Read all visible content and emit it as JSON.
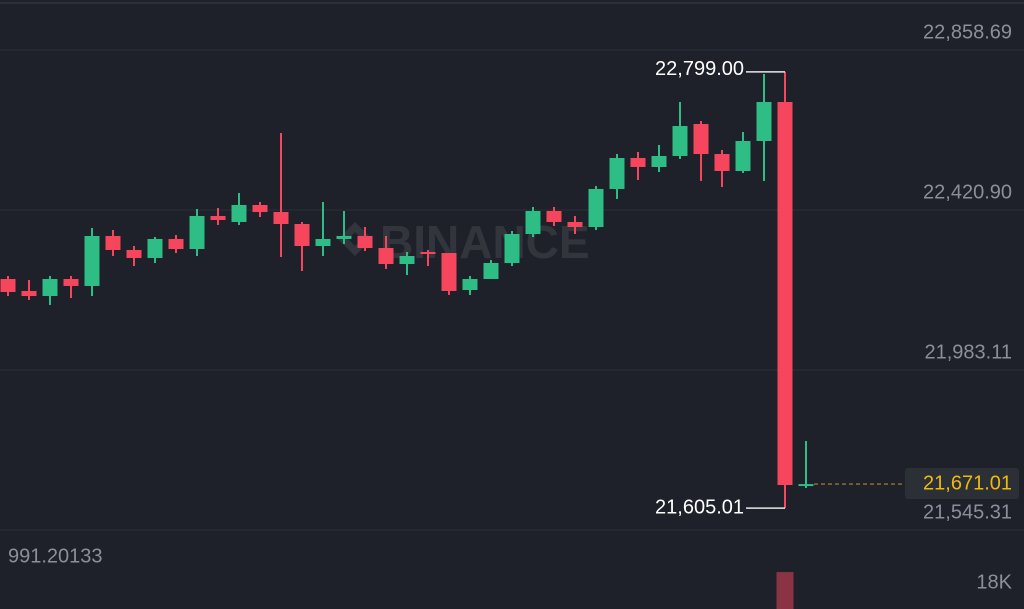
{
  "chart_data": {
    "type": "candlestick",
    "watermark": "BINANCE",
    "up_color": "#2ebd85",
    "down_color": "#f6465d",
    "ylim": [
      21545.31,
      22995.5
    ],
    "yticks": [
      {
        "value": 22858.69,
        "label": "22,858.69"
      },
      {
        "value": 22420.9,
        "label": "22,420.90"
      },
      {
        "value": 21983.11,
        "label": "21,983.11"
      },
      {
        "value": 21545.31,
        "label": "21,545.31"
      }
    ],
    "grid": true,
    "open": [
      22232.1,
      22199.3,
      22185.6,
      22232.1,
      22213.0,
      22349.8,
      22311.5,
      22289.6,
      22341.6,
      22314.2,
      22404.5,
      22388.1,
      22434.6,
      22415.4,
      22382.6,
      22322.4,
      22341.6,
      22349.8,
      22316.9,
      22273.1,
      22306.0,
      22303.2,
      22202.0,
      22232.1,
      22275.9,
      22355.2,
      22418.2,
      22388.1,
      22374.4,
      22478.4,
      22563.2,
      22538.6,
      22568.7,
      22656.2,
      22574.1,
      22527.6,
      22609.7,
      22716.4,
      21668.4
    ],
    "high": [
      22240.3,
      22229.4,
      22240.3,
      22240.3,
      22371.7,
      22366.2,
      22322.4,
      22347.0,
      22352.5,
      22423.6,
      22426.4,
      22467.4,
      22442.8,
      22631.6,
      22388.1,
      22442.8,
      22418.2,
      22374.4,
      22349.8,
      22306.0,
      22311.5,
      22303.2,
      22240.3,
      22284.1,
      22363.4,
      22429.1,
      22429.1,
      22404.5,
      22486.6,
      22574.1,
      22579.6,
      22598.8,
      22716.4,
      22664.4,
      22585.1,
      22634.3,
      22793.0,
      22799.0,
      21788.8
    ],
    "low": [
      22185.6,
      22174.6,
      22161.0,
      22180.1,
      22185.6,
      22295.0,
      22267.7,
      22275.9,
      22303.2,
      22295.0,
      22379.9,
      22379.9,
      22401.7,
      22292.3,
      22254.0,
      22295.0,
      22327.9,
      22308.7,
      22259.5,
      22243.0,
      22267.7,
      22188.3,
      22188.3,
      22232.1,
      22267.7,
      22347.0,
      22377.1,
      22355.2,
      22366.2,
      22451.0,
      22503.0,
      22524.9,
      22560.4,
      22500.3,
      22483.8,
      22522.1,
      22500.3,
      21605.01,
      21660.2
    ],
    "close": [
      22196.5,
      22185.6,
      22232.1,
      22213.0,
      22349.8,
      22311.5,
      22289.6,
      22341.6,
      22314.2,
      22404.5,
      22393.5,
      22434.6,
      22415.4,
      22382.6,
      22322.4,
      22341.6,
      22349.8,
      22316.9,
      22273.1,
      22295.0,
      22300.5,
      22199.3,
      22232.1,
      22275.9,
      22355.2,
      22418.2,
      22388.1,
      22374.4,
      22478.4,
      22563.2,
      22538.6,
      22568.7,
      22650.7,
      22574.1,
      22527.6,
      22609.7,
      22716.4,
      21668.4,
      21671.01
    ],
    "high_label": "22,799.00",
    "low_label": "21,605.01",
    "last_price_label": "21,671.01",
    "volume": {
      "label": "991.20133",
      "ylim": [
        0,
        47770
      ],
      "yticks": [
        {
          "value": 18000,
          "label": "18K"
        }
      ],
      "values": [
        null,
        null,
        null,
        null,
        null,
        null,
        null,
        null,
        null,
        null,
        null,
        null,
        null,
        null,
        null,
        null,
        null,
        null,
        null,
        null,
        null,
        null,
        null,
        null,
        null,
        null,
        null,
        null,
        null,
        null,
        null,
        null,
        null,
        null,
        null,
        null,
        null,
        25600,
        null
      ]
    }
  }
}
